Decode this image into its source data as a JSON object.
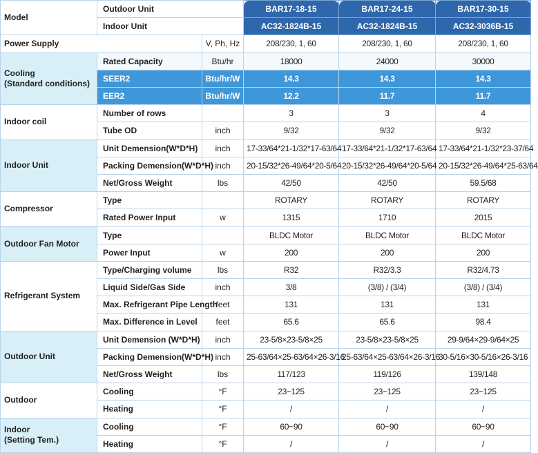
{
  "header": {
    "model_label": "Model",
    "outdoor_label": "Outdoor Unit",
    "indoor_label": "Indoor Unit",
    "outdoor_models": [
      "BAR17-18-15",
      "BAR17-24-15",
      "BAR17-30-15"
    ],
    "indoor_models": [
      "AC32-1824B-15",
      "AC32-1824B-15",
      "AC32-3036B-15"
    ]
  },
  "colors": {
    "header": "#2f67ad",
    "highlight": "#3f97d9",
    "group_alt": "#d8eff8"
  },
  "power_supply": {
    "label": "Power Supply",
    "unit": "V, Ph, Hz",
    "values": [
      "208/230, 1, 60",
      "208/230, 1, 60",
      "208/230, 1, 60"
    ]
  },
  "groups": [
    {
      "label": "Cooling\n(Standard conditions)",
      "alt": true,
      "rows": [
        {
          "param": "Rated Capacity",
          "unit": "Btu/hr",
          "values": [
            "18000",
            "24000",
            "30000"
          ],
          "light": true
        },
        {
          "param": "SEER2",
          "unit": "Btu/hr/W",
          "values": [
            "14.3",
            "14.3",
            "14.3"
          ],
          "highlight": true
        },
        {
          "param": "EER2",
          "unit": "Btu/hr/W",
          "values": [
            "12.2",
            "11.7",
            "11.7"
          ],
          "highlight": true
        }
      ]
    },
    {
      "label": "Indoor coil",
      "alt": false,
      "rows": [
        {
          "param": "Number of rows",
          "unit": "",
          "values": [
            "3",
            "3",
            "4"
          ]
        },
        {
          "param": "Tube OD",
          "unit": "inch",
          "values": [
            "9/32",
            "9/32",
            "9/32"
          ]
        }
      ]
    },
    {
      "label": "Indoor Unit",
      "alt": true,
      "rows": [
        {
          "param": "Unit Demension(W*D*H)",
          "unit": "inch",
          "values": [
            "17-33/64*21-1/32*17-63/64",
            "17-33/64*21-1/32*17-63/64",
            "17-33/64*21-1/32*23-37/64"
          ]
        },
        {
          "param": "Packing Demension(W*D*H)",
          "unit": "inch",
          "values": [
            "20-15/32*26-49/64*20-5/64",
            "20-15/32*26-49/64*20-5/64",
            "20-15/32*26-49/64*25-63/64"
          ]
        },
        {
          "param": "Net/Gross Weight",
          "unit": "lbs",
          "values": [
            "42/50",
            "42/50",
            "59.5/68"
          ]
        }
      ]
    },
    {
      "label": "Compressor",
      "alt": false,
      "rows": [
        {
          "param": "Type",
          "unit": "",
          "values": [
            "ROTARY",
            "ROTARY",
            "ROTARY"
          ]
        },
        {
          "param": "Rated Power Input",
          "unit": "w",
          "values": [
            "1315",
            "1710",
            "2015"
          ]
        }
      ]
    },
    {
      "label": "Outdoor Fan Motor",
      "alt": true,
      "rows": [
        {
          "param": "Type",
          "unit": "",
          "values": [
            "BLDC Motor",
            "BLDC Motor",
            "BLDC Motor"
          ]
        },
        {
          "param": "Power Input",
          "unit": "w",
          "values": [
            "200",
            "200",
            "200"
          ]
        }
      ]
    },
    {
      "label": "Refrigerant System",
      "alt": false,
      "rows": [
        {
          "param": "Type/Charging volume",
          "unit": "lbs",
          "values": [
            "R32",
            "R32/3.3",
            "R32/4.73"
          ]
        },
        {
          "param": "Liquid Side/Gas Side",
          "unit": "inch",
          "values": [
            "3/8",
            "(3/8) / (3/4)",
            "(3/8) / (3/4)"
          ]
        },
        {
          "param": "Max. Refrigerant Pipe Length",
          "unit": "feet",
          "values": [
            "131",
            "131",
            "131"
          ]
        },
        {
          "param": "Max. Difference in Level",
          "unit": "feet",
          "values": [
            "65.6",
            "65.6",
            "98.4"
          ]
        }
      ]
    },
    {
      "label": "Outdoor Unit",
      "alt": true,
      "rows": [
        {
          "param": "Unit Demension (W*D*H)",
          "unit": "inch",
          "values": [
            "23-5/8×23-5/8×25",
            "23-5/8×23-5/8×25",
            "29-9/64×29-9/64×25"
          ]
        },
        {
          "param": "Packing Demension(W*D*H)",
          "unit": "inch",
          "values": [
            "25-63/64×25-63/64×26-3/16",
            "25-63/64×25-63/64×26-3/16",
            "30-5/16×30-5/16×26-3/16"
          ]
        },
        {
          "param": "Net/Gross Weight",
          "unit": "lbs",
          "values": [
            "117/123",
            "119/126",
            "139/148"
          ]
        }
      ]
    },
    {
      "label": "Outdoor",
      "alt": false,
      "rows": [
        {
          "param": "Cooling",
          "unit": "°F",
          "values": [
            "23~125",
            "23~125",
            "23~125"
          ]
        },
        {
          "param": "Heating",
          "unit": "°F",
          "values": [
            "/",
            "/",
            "/"
          ]
        }
      ]
    },
    {
      "label": "Indoor\n(Setting Tem.)",
      "alt": true,
      "rows": [
        {
          "param": "Cooling",
          "unit": "°F",
          "values": [
            "60~90",
            "60~90",
            "60~90"
          ]
        },
        {
          "param": "Heating",
          "unit": "°F",
          "values": [
            "/",
            "/",
            "/"
          ]
        }
      ]
    }
  ]
}
